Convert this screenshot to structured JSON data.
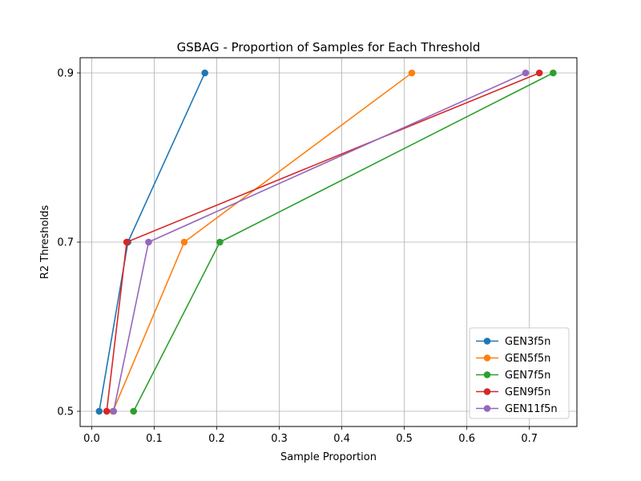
{
  "chart_data": {
    "type": "line",
    "title": "GSBAG - Proportion of Samples for Each Threshold",
    "xlabel": "Sample Proportion",
    "ylabel": "R2 Thresholds",
    "xlim": [
      -0.0185,
      0.776
    ],
    "ylim": [
      0.482,
      0.918
    ],
    "xticks": [
      0.0,
      0.1,
      0.2,
      0.3,
      0.4,
      0.5,
      0.6,
      0.7
    ],
    "xtick_labels": [
      "0.0",
      "0.1",
      "0.2",
      "0.3",
      "0.4",
      "0.5",
      "0.6",
      "0.7"
    ],
    "yticks": [
      0.5,
      0.7,
      0.9
    ],
    "ytick_labels": [
      "0.5",
      "0.7",
      "0.9"
    ],
    "grid": true,
    "legend_position": "lower-right",
    "series": [
      {
        "name": "GEN3f5n",
        "color": "#1f77b4",
        "points": [
          [
            0.012,
            0.5
          ],
          [
            0.058,
            0.7
          ],
          [
            0.181,
            0.9
          ]
        ]
      },
      {
        "name": "GEN5f5n",
        "color": "#ff7f0e",
        "points": [
          [
            0.034,
            0.5
          ],
          [
            0.148,
            0.7
          ],
          [
            0.512,
            0.9
          ]
        ]
      },
      {
        "name": "GEN7f5n",
        "color": "#2ca02c",
        "points": [
          [
            0.067,
            0.5
          ],
          [
            0.205,
            0.7
          ],
          [
            0.738,
            0.9
          ]
        ]
      },
      {
        "name": "GEN9f5n",
        "color": "#d62728",
        "points": [
          [
            0.024,
            0.5
          ],
          [
            0.056,
            0.7
          ],
          [
            0.716,
            0.9
          ]
        ]
      },
      {
        "name": "GEN11f5n",
        "color": "#9467bd",
        "points": [
          [
            0.035,
            0.5
          ],
          [
            0.091,
            0.7
          ],
          [
            0.694,
            0.9
          ]
        ]
      }
    ]
  }
}
